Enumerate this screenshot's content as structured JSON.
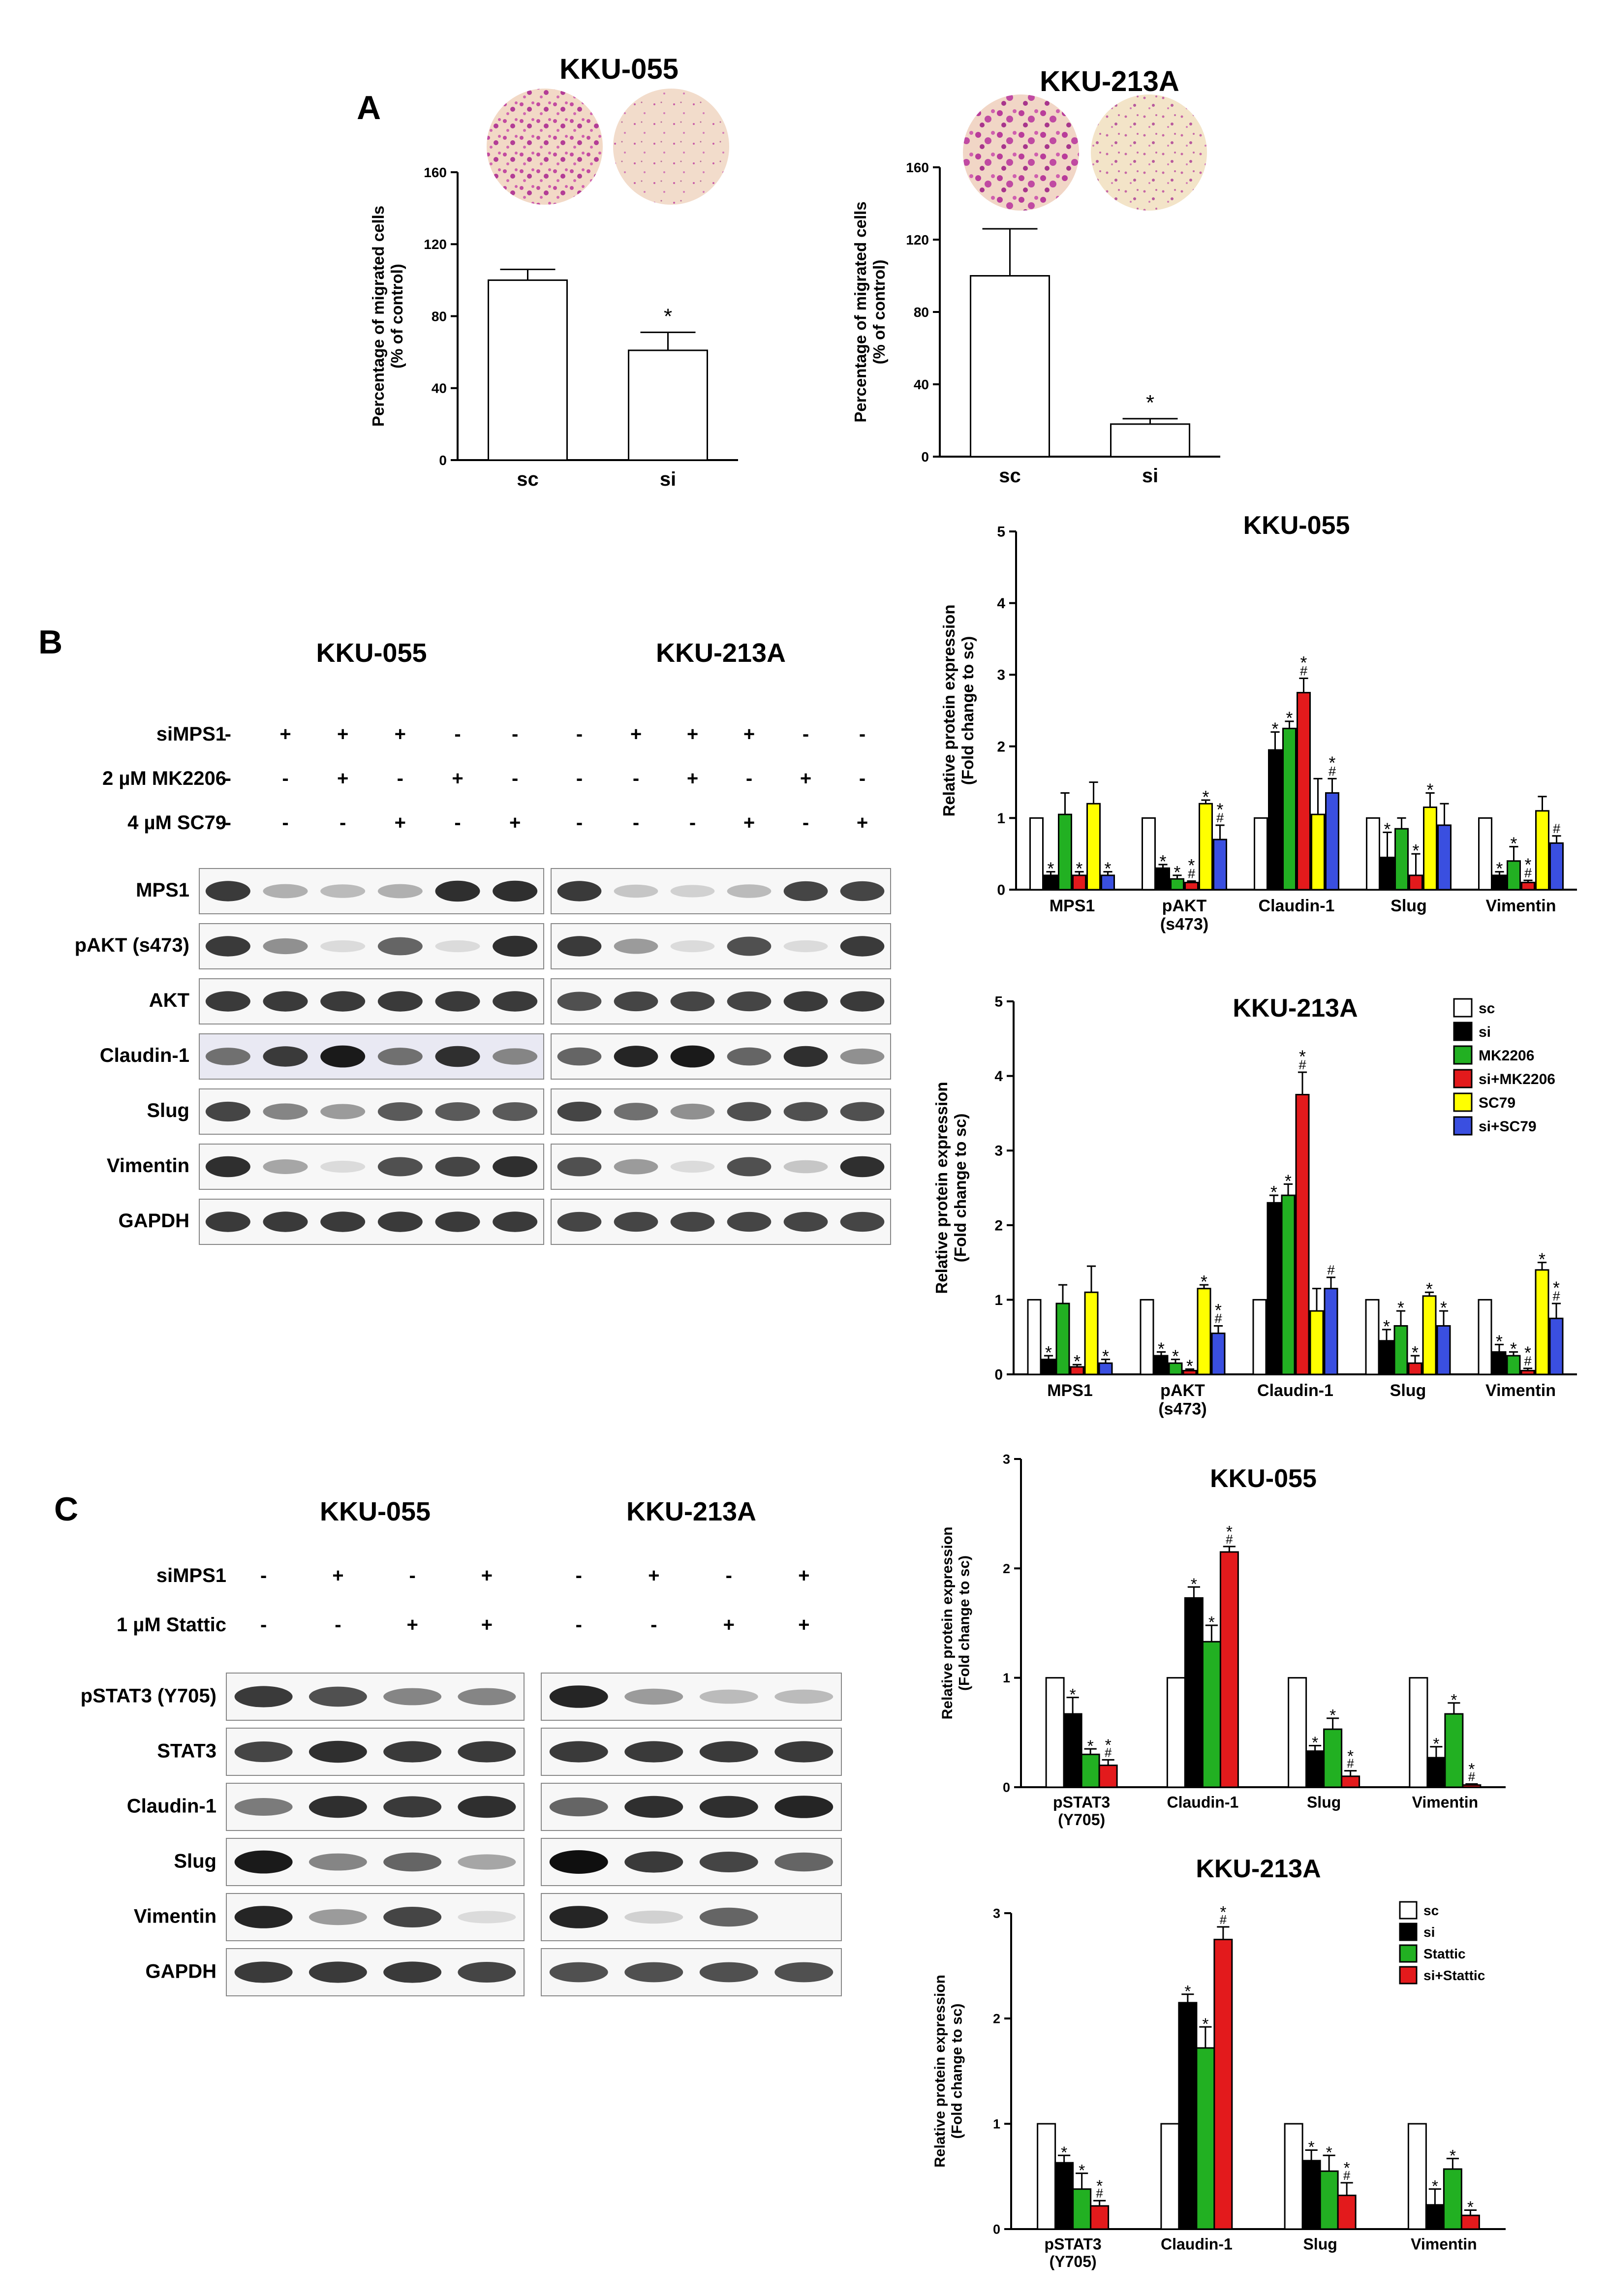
{
  "panel_labels": {
    "a": "A",
    "b": "B",
    "c": "C"
  },
  "colors": {
    "sc": "#ffffff",
    "si": "#000000",
    "mk": "#22b022",
    "simk": "#e31a1c",
    "sc79": "#ffff00",
    "sisc79": "#3a4fe0"
  },
  "panelA": {
    "kku055": {
      "title": "KKU-055"
    },
    "kku213": {
      "title": "KKU-213A"
    }
  },
  "panelB": {
    "line_headers": [
      "KKU-055",
      "KKU-213A"
    ],
    "treatments": [
      {
        "label": "siMPS1",
        "kku055": [
          "-",
          "+",
          "+",
          "+",
          "-",
          "-"
        ],
        "kku213": [
          "-",
          "+",
          "+",
          "+",
          "-",
          "-"
        ]
      },
      {
        "label": "2 µM MK2206",
        "kku055": [
          "-",
          "-",
          "+",
          "-",
          "+",
          "-"
        ],
        "kku213": [
          "-",
          "-",
          "+",
          "-",
          "+",
          "-"
        ]
      },
      {
        "label": "4 µM SC79",
        "kku055": [
          "-",
          "-",
          "-",
          "+",
          "-",
          "+"
        ],
        "kku213": [
          "-",
          "-",
          "-",
          "+",
          "-",
          "+"
        ]
      }
    ],
    "blots": [
      {
        "label": "MPS1",
        "kku055": [
          0.8,
          0.25,
          0.2,
          0.25,
          0.85,
          0.85
        ],
        "kku213": [
          0.8,
          0.15,
          0.1,
          0.2,
          0.75,
          0.75
        ]
      },
      {
        "label": "pAKT (s473)",
        "kku055": [
          0.8,
          0.4,
          0.05,
          0.6,
          0.05,
          0.85
        ],
        "kku213": [
          0.8,
          0.35,
          0.05,
          0.7,
          0.05,
          0.8
        ]
      },
      {
        "label": "AKT",
        "kku055": [
          0.8,
          0.8,
          0.8,
          0.8,
          0.8,
          0.8
        ],
        "kku213": [
          0.7,
          0.75,
          0.75,
          0.75,
          0.8,
          0.8
        ]
      },
      {
        "label": "Claudin-1",
        "kku055": [
          0.55,
          0.8,
          0.95,
          0.55,
          0.85,
          0.45
        ],
        "kku213": [
          0.6,
          0.9,
          0.95,
          0.6,
          0.85,
          0.4
        ]
      },
      {
        "label": "Slug",
        "kku055": [
          0.75,
          0.45,
          0.35,
          0.65,
          0.65,
          0.65
        ],
        "kku213": [
          0.75,
          0.55,
          0.4,
          0.7,
          0.7,
          0.7
        ]
      },
      {
        "label": "Vimentin",
        "kku055": [
          0.85,
          0.3,
          0.05,
          0.7,
          0.75,
          0.85
        ],
        "kku213": [
          0.7,
          0.35,
          0.05,
          0.7,
          0.15,
          0.85
        ]
      },
      {
        "label": "GAPDH",
        "kku055": [
          0.8,
          0.8,
          0.8,
          0.8,
          0.8,
          0.8
        ],
        "kku213": [
          0.75,
          0.75,
          0.75,
          0.75,
          0.75,
          0.75
        ]
      }
    ]
  },
  "panelC": {
    "line_headers": [
      "KKU-055",
      "KKU-213A"
    ],
    "treatments": [
      {
        "label": "siMPS1",
        "kku055": [
          "-",
          "+",
          "-",
          "+"
        ],
        "kku213": [
          "-",
          "+",
          "-",
          "+"
        ]
      },
      {
        "label": "1 µM Stattic",
        "kku055": [
          "-",
          "-",
          "+",
          "+"
        ],
        "kku213": [
          "-",
          "-",
          "+",
          "+"
        ]
      }
    ],
    "blots": [
      {
        "label": "pSTAT3 (Y705)",
        "kku055": [
          0.8,
          0.7,
          0.45,
          0.45
        ],
        "kku213": [
          0.9,
          0.35,
          0.2,
          0.2
        ]
      },
      {
        "label": "STAT3",
        "kku055": [
          0.75,
          0.85,
          0.8,
          0.8
        ],
        "kku213": [
          0.8,
          0.8,
          0.8,
          0.8
        ]
      },
      {
        "label": "Claudin-1",
        "kku055": [
          0.5,
          0.85,
          0.8,
          0.85
        ],
        "kku213": [
          0.6,
          0.85,
          0.85,
          0.9
        ]
      },
      {
        "label": "Slug",
        "kku055": [
          0.95,
          0.45,
          0.6,
          0.3
        ],
        "kku213": [
          1.0,
          0.8,
          0.75,
          0.6
        ]
      },
      {
        "label": "Vimentin",
        "kku055": [
          0.9,
          0.35,
          0.75,
          0.05
        ],
        "kku213": [
          0.9,
          0.1,
          0.6,
          0.0
        ]
      },
      {
        "label": "GAPDH",
        "kku055": [
          0.8,
          0.8,
          0.8,
          0.75
        ],
        "kku213": [
          0.7,
          0.7,
          0.7,
          0.7
        ]
      }
    ]
  },
  "chart_data": [
    {
      "id": "a055",
      "type": "bar",
      "title": "KKU-055",
      "ylabel": "Percentage of migrated cells\n(% of control)",
      "ylim": [
        0,
        160
      ],
      "yticks": [
        0,
        40,
        80,
        120,
        160
      ],
      "categories": [
        "sc",
        "si"
      ],
      "series": [
        {
          "values": [
            100,
            61
          ],
          "errors": [
            6,
            10
          ]
        }
      ],
      "colors": [
        "sc",
        "si"
      ],
      "annotations": [
        {
          "cat": 1,
          "text": "*"
        }
      ]
    },
    {
      "id": "a213",
      "type": "bar",
      "title": "KKU-213A",
      "ylabel": "Percentage of migrated cells\n(% of control)",
      "ylim": [
        0,
        160
      ],
      "yticks": [
        0,
        40,
        80,
        120,
        160
      ],
      "categories": [
        "sc",
        "si"
      ],
      "series": [
        {
          "values": [
            100,
            18
          ],
          "errors": [
            26,
            3
          ]
        }
      ],
      "colors": [
        "sc",
        "si"
      ],
      "annotations": [
        {
          "cat": 1,
          "text": "*"
        }
      ]
    },
    {
      "id": "b055",
      "type": "bar",
      "title": "KKU-055",
      "ylabel": "Relative protein expression\n(Fold change to sc)",
      "ylim": [
        0,
        5
      ],
      "yticks": [
        0,
        1,
        2,
        3,
        4,
        5
      ],
      "categories": [
        "MPS1",
        "pAKT\n(s473)",
        "Claudin-1",
        "Slug",
        "Vimentin"
      ],
      "colors": [
        "sc",
        "si",
        "mk",
        "simk",
        "sc79",
        "sisc79"
      ],
      "series": [
        {
          "name": "sc",
          "values": [
            1,
            1,
            1,
            1,
            1
          ],
          "errors": [
            0,
            0,
            0,
            0,
            0
          ],
          "labels": [
            "",
            "",
            "",
            "",
            ""
          ]
        },
        {
          "name": "si",
          "values": [
            0.2,
            0.3,
            1.95,
            0.45,
            0.2
          ],
          "errors": [
            0.05,
            0.05,
            0.25,
            0.35,
            0.05
          ],
          "labels": [
            "*",
            "*",
            "*",
            "*",
            "*"
          ]
        },
        {
          "name": "MK2206",
          "values": [
            1.05,
            0.15,
            2.25,
            0.85,
            0.4
          ],
          "errors": [
            0.3,
            0.05,
            0.1,
            0.15,
            0.2
          ],
          "labels": [
            "",
            "*",
            "*",
            "",
            "*"
          ]
        },
        {
          "name": "si+MK2206",
          "values": [
            0.2,
            0.1,
            2.75,
            0.2,
            0.1
          ],
          "errors": [
            0.05,
            0.02,
            0.2,
            0.3,
            0.03
          ],
          "labels": [
            "*",
            "*\n#",
            "*\n#",
            "*",
            "*\n#"
          ]
        },
        {
          "name": "SC79",
          "values": [
            1.2,
            1.2,
            1.05,
            1.15,
            1.1
          ],
          "errors": [
            0.3,
            0.05,
            0.5,
            0.2,
            0.2
          ],
          "labels": [
            "",
            "*",
            "",
            "*",
            ""
          ]
        },
        {
          "name": "si+SC79",
          "values": [
            0.2,
            0.7,
            1.35,
            0.9,
            0.65
          ],
          "errors": [
            0.05,
            0.2,
            0.2,
            0.3,
            0.1
          ],
          "labels": [
            "*",
            "*\n#",
            "*\n#",
            "",
            "#"
          ]
        }
      ]
    },
    {
      "id": "b213",
      "type": "bar",
      "title": "KKU-213A",
      "ylabel": "Relative protein expression\n(Fold change to sc)",
      "ylim": [
        0,
        5
      ],
      "yticks": [
        0,
        1,
        2,
        3,
        4,
        5
      ],
      "categories": [
        "MPS1",
        "pAKT\n(s473)",
        "Claudin-1",
        "Slug",
        "Vimentin"
      ],
      "colors": [
        "sc",
        "si",
        "mk",
        "simk",
        "sc79",
        "sisc79"
      ],
      "legend": [
        "sc",
        "si",
        "MK2206",
        "si+MK2206",
        "SC79",
        "si+SC79"
      ],
      "series": [
        {
          "name": "sc",
          "values": [
            1,
            1,
            1,
            1,
            1
          ],
          "errors": [
            0,
            0,
            0,
            0,
            0
          ],
          "labels": [
            "",
            "",
            "",
            "",
            ""
          ]
        },
        {
          "name": "si",
          "values": [
            0.2,
            0.25,
            2.3,
            0.45,
            0.3
          ],
          "errors": [
            0.05,
            0.05,
            0.1,
            0.15,
            0.1
          ],
          "labels": [
            "*",
            "*",
            "*",
            "*",
            "*"
          ]
        },
        {
          "name": "MK2206",
          "values": [
            0.95,
            0.15,
            2.4,
            0.65,
            0.25
          ],
          "errors": [
            0.25,
            0.05,
            0.15,
            0.2,
            0.05
          ],
          "labels": [
            "",
            "*",
            "*",
            "*",
            "*"
          ]
        },
        {
          "name": "si+MK2206",
          "values": [
            0.1,
            0.05,
            3.75,
            0.15,
            0.05
          ],
          "errors": [
            0.03,
            0.02,
            0.3,
            0.1,
            0.03
          ],
          "labels": [
            "*",
            "*",
            "*\n#",
            "*",
            "*\n#"
          ]
        },
        {
          "name": "SC79",
          "values": [
            1.1,
            1.15,
            0.85,
            1.05,
            1.4
          ],
          "errors": [
            0.35,
            0.05,
            0.3,
            0.05,
            0.1
          ],
          "labels": [
            "",
            "*",
            "",
            "*",
            "*"
          ]
        },
        {
          "name": "si+SC79",
          "values": [
            0.15,
            0.55,
            1.15,
            0.65,
            0.75
          ],
          "errors": [
            0.05,
            0.1,
            0.15,
            0.2,
            0.2
          ],
          "labels": [
            "*",
            "*\n#",
            "#",
            "*",
            "*\n#"
          ]
        }
      ]
    },
    {
      "id": "c055",
      "type": "bar",
      "title": "KKU-055",
      "ylabel": "Relative protein expression\n(Fold change to sc)",
      "ylim": [
        0,
        3
      ],
      "yticks": [
        0,
        1,
        2,
        3
      ],
      "categories": [
        "pSTAT3\n(Y705)",
        "Claudin-1",
        "Slug",
        "Vimentin"
      ],
      "colors": [
        "sc",
        "si",
        "mk",
        "simk"
      ],
      "series": [
        {
          "name": "sc",
          "values": [
            1,
            1,
            1,
            1
          ],
          "errors": [
            0,
            0,
            0,
            0
          ],
          "labels": [
            "",
            "",
            "",
            ""
          ]
        },
        {
          "name": "si",
          "values": [
            0.67,
            1.73,
            0.33,
            0.27
          ],
          "errors": [
            0.15,
            0.1,
            0.05,
            0.1
          ],
          "labels": [
            "*",
            "*",
            "*",
            "*"
          ]
        },
        {
          "name": "Stattic",
          "values": [
            0.3,
            1.33,
            0.53,
            0.67
          ],
          "errors": [
            0.05,
            0.15,
            0.1,
            0.1
          ],
          "labels": [
            "*",
            "*",
            "*",
            "*"
          ]
        },
        {
          "name": "si+Stattic",
          "values": [
            0.2,
            2.15,
            0.1,
            0.02
          ],
          "errors": [
            0.05,
            0.05,
            0.05,
            0.01
          ],
          "labels": [
            "*\n#",
            "*\n#",
            "*\n#",
            "*\n#"
          ]
        }
      ]
    },
    {
      "id": "c213",
      "type": "bar",
      "title": "KKU-213A",
      "ylabel": "Relative protein expression\n(Fold change to sc)",
      "ylim": [
        0,
        3
      ],
      "yticks": [
        0,
        1,
        2,
        3
      ],
      "categories": [
        "pSTAT3\n(Y705)",
        "Claudin-1",
        "Slug",
        "Vimentin"
      ],
      "colors": [
        "sc",
        "si",
        "mk",
        "simk"
      ],
      "legend": [
        "sc",
        "si",
        "Stattic",
        "si+Stattic"
      ],
      "series": [
        {
          "name": "sc",
          "values": [
            1,
            1,
            1,
            1
          ],
          "errors": [
            0,
            0,
            0,
            0
          ],
          "labels": [
            "",
            "",
            "",
            ""
          ]
        },
        {
          "name": "si",
          "values": [
            0.63,
            2.15,
            0.65,
            0.23
          ],
          "errors": [
            0.07,
            0.08,
            0.1,
            0.15
          ],
          "labels": [
            "*",
            "*",
            "*",
            "*"
          ]
        },
        {
          "name": "Stattic",
          "values": [
            0.38,
            1.72,
            0.55,
            0.57
          ],
          "errors": [
            0.15,
            0.2,
            0.15,
            0.1
          ],
          "labels": [
            "*",
            "*",
            "*",
            "*"
          ]
        },
        {
          "name": "si+Stattic",
          "values": [
            0.22,
            2.75,
            0.32,
            0.13
          ],
          "errors": [
            0.05,
            0.12,
            0.12,
            0.05
          ],
          "labels": [
            "*\n#",
            "*\n#",
            "*\n#",
            "*"
          ]
        }
      ]
    }
  ]
}
